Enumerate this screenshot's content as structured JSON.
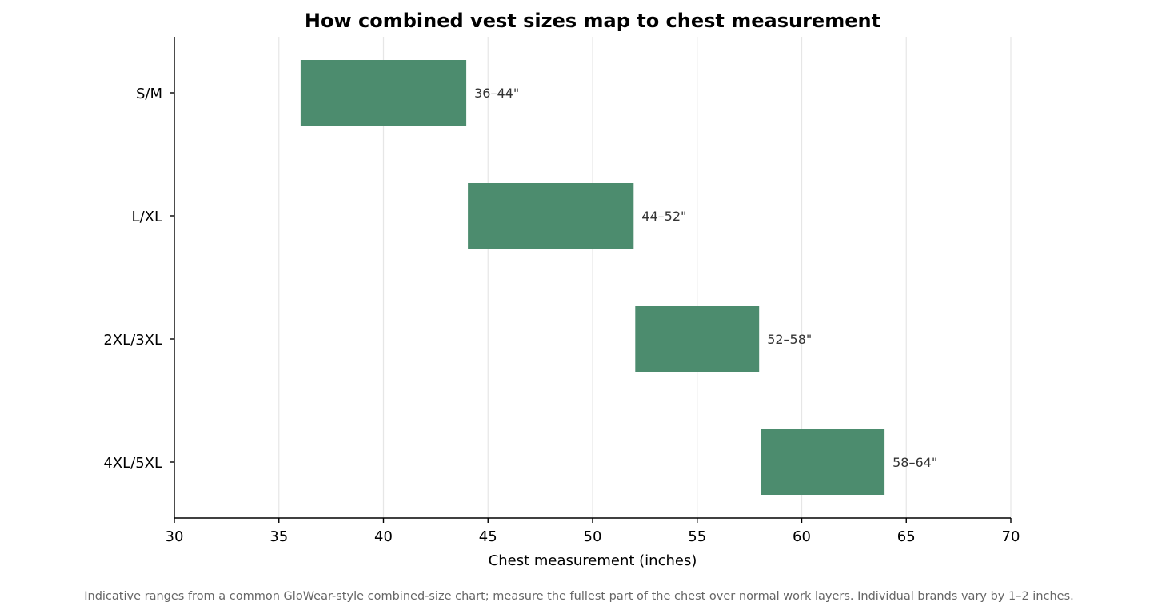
{
  "chart_data": {
    "type": "bar",
    "orientation": "horizontal-range",
    "title": "How combined vest sizes map to chest measurement",
    "xlabel": "Chest measurement (inches)",
    "ylabel": "",
    "xlim": [
      30,
      70
    ],
    "xticks": [
      30,
      35,
      40,
      45,
      50,
      55,
      60,
      65,
      70
    ],
    "grid": "vertical",
    "categories": [
      "S/M",
      "L/XL",
      "2XL/3XL",
      "4XL/5XL"
    ],
    "ranges": [
      {
        "category": "S/M",
        "start": 36,
        "end": 44,
        "label": "36–44\""
      },
      {
        "category": "L/XL",
        "start": 44,
        "end": 52,
        "label": "44–52\""
      },
      {
        "category": "2XL/3XL",
        "start": 52,
        "end": 58,
        "label": "52–58\""
      },
      {
        "category": "4XL/5XL",
        "start": 58,
        "end": 64,
        "label": "58–64\""
      }
    ],
    "bar_color": "#4c8c6e",
    "footnote": "Indicative ranges from a common GloWear-style combined-size chart; measure the fullest part of the chest over normal work layers. Individual brands vary by 1–2 inches."
  }
}
